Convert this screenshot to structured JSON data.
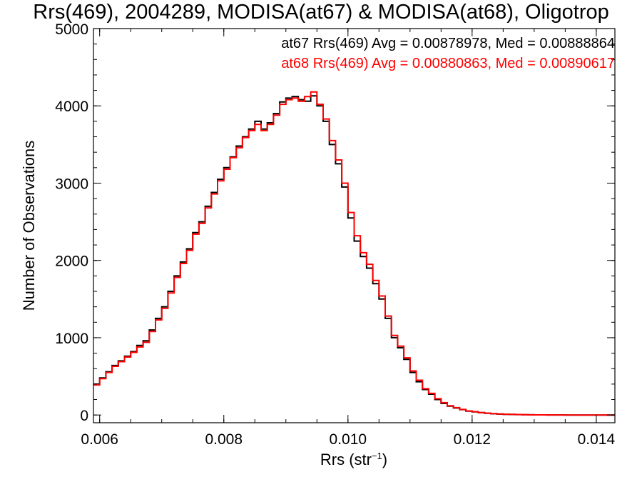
{
  "chart_data": {
    "type": "line",
    "title": "Rrs(469), 2004289, MODISA(at67) & MODISA(at68), Oligotrop",
    "xlabel_main": "Rrs (str",
    "xlabel_sup": "−1",
    "xlabel_close": ")",
    "ylabel": "Number of Observations",
    "xlim": [
      0.0059,
      0.0143
    ],
    "ylim": [
      -100,
      5000
    ],
    "x_ticks": [
      0.006,
      0.008,
      0.01,
      0.012,
      0.014
    ],
    "x_tick_labels": [
      "0.006",
      "0.008",
      "0.010",
      "0.012",
      "0.014"
    ],
    "y_ticks": [
      0,
      1000,
      2000,
      3000,
      4000,
      5000
    ],
    "y_tick_labels": [
      "0",
      "1000",
      "2000",
      "3000",
      "4000",
      "5000"
    ],
    "legend_position": "top-right",
    "legend": [
      {
        "text": "at67 Rrs(469) Avg = 0.00878978, Med = 0.00888864",
        "color": "#000000"
      },
      {
        "text": "at68 Rrs(469) Avg = 0.00880863, Med = 0.00890617",
        "color": "#ff0000"
      }
    ],
    "series": [
      {
        "name": "at67",
        "color": "#000000",
        "x": [
          0.0059,
          0.006,
          0.0061,
          0.0062,
          0.0063,
          0.0064,
          0.0065,
          0.0066,
          0.0067,
          0.0068,
          0.0069,
          0.007,
          0.0071,
          0.0072,
          0.0073,
          0.0074,
          0.0075,
          0.0076,
          0.0077,
          0.0078,
          0.0079,
          0.008,
          0.0081,
          0.0082,
          0.0083,
          0.0084,
          0.0085,
          0.0086,
          0.0087,
          0.0088,
          0.0089,
          0.009,
          0.0091,
          0.0092,
          0.0093,
          0.0094,
          0.0095,
          0.0096,
          0.0097,
          0.0098,
          0.0099,
          0.01,
          0.0101,
          0.0102,
          0.0103,
          0.0104,
          0.0105,
          0.0106,
          0.0107,
          0.0108,
          0.0109,
          0.011,
          0.0111,
          0.0112,
          0.0113,
          0.0114,
          0.0115,
          0.0116,
          0.0117,
          0.0118,
          0.0119,
          0.012,
          0.0121,
          0.0122,
          0.0123,
          0.0124,
          0.0125,
          0.0126,
          0.0127,
          0.0128,
          0.0129,
          0.013,
          0.0131,
          0.0132,
          0.0133,
          0.0134,
          0.0135,
          0.0136,
          0.0137,
          0.0138,
          0.0139,
          0.014,
          0.0141,
          0.0142,
          0.0143
        ],
        "y": [
          400,
          480,
          560,
          640,
          700,
          760,
          820,
          900,
          960,
          1100,
          1250,
          1400,
          1600,
          1800,
          1980,
          2150,
          2360,
          2500,
          2700,
          2880,
          3050,
          3200,
          3340,
          3480,
          3600,
          3700,
          3800,
          3700,
          3780,
          3900,
          4050,
          4100,
          4120,
          4080,
          4060,
          4130,
          4000,
          3800,
          3500,
          3250,
          2950,
          2550,
          2250,
          2050,
          1900,
          1700,
          1500,
          1250,
          1000,
          870,
          720,
          550,
          430,
          330,
          270,
          200,
          150,
          115,
          90,
          70,
          50,
          40,
          30,
          22,
          16,
          12,
          9,
          7,
          5,
          4,
          3,
          2,
          2,
          1,
          1,
          1,
          0,
          0,
          0,
          0,
          0,
          0,
          0,
          0,
          0
        ]
      },
      {
        "name": "at68",
        "color": "#ff0000",
        "x": [
          0.0059,
          0.006,
          0.0061,
          0.0062,
          0.0063,
          0.0064,
          0.0065,
          0.0066,
          0.0067,
          0.0068,
          0.0069,
          0.007,
          0.0071,
          0.0072,
          0.0073,
          0.0074,
          0.0075,
          0.0076,
          0.0077,
          0.0078,
          0.0079,
          0.008,
          0.0081,
          0.0082,
          0.0083,
          0.0084,
          0.0085,
          0.0086,
          0.0087,
          0.0088,
          0.0089,
          0.009,
          0.0091,
          0.0092,
          0.0093,
          0.0094,
          0.0095,
          0.0096,
          0.0097,
          0.0098,
          0.0099,
          0.01,
          0.0101,
          0.0102,
          0.0103,
          0.0104,
          0.0105,
          0.0106,
          0.0107,
          0.0108,
          0.0109,
          0.011,
          0.0111,
          0.0112,
          0.0113,
          0.0114,
          0.0115,
          0.0116,
          0.0117,
          0.0118,
          0.0119,
          0.012,
          0.0121,
          0.0122,
          0.0123,
          0.0124,
          0.0125,
          0.0126,
          0.0127,
          0.0128,
          0.0129,
          0.013,
          0.0131,
          0.0132,
          0.0133,
          0.0134,
          0.0135,
          0.0136,
          0.0137,
          0.0138,
          0.0139,
          0.014,
          0.0141,
          0.0142,
          0.0143
        ],
        "y": [
          390,
          470,
          550,
          630,
          690,
          750,
          810,
          880,
          940,
          1080,
          1230,
          1380,
          1580,
          1780,
          1960,
          2130,
          2340,
          2480,
          2680,
          2860,
          3030,
          3180,
          3330,
          3460,
          3590,
          3680,
          3760,
          3680,
          3760,
          3880,
          4020,
          4080,
          4100,
          4060,
          4120,
          4180,
          4020,
          3830,
          3550,
          3300,
          3000,
          2620,
          2320,
          2100,
          1950,
          1740,
          1540,
          1280,
          1030,
          890,
          740,
          570,
          450,
          340,
          280,
          210,
          160,
          120,
          95,
          72,
          52,
          42,
          32,
          24,
          17,
          13,
          10,
          8,
          6,
          4,
          3,
          2,
          2,
          1,
          1,
          1,
          0,
          0,
          0,
          0,
          0,
          0,
          0,
          0,
          0
        ]
      }
    ]
  }
}
